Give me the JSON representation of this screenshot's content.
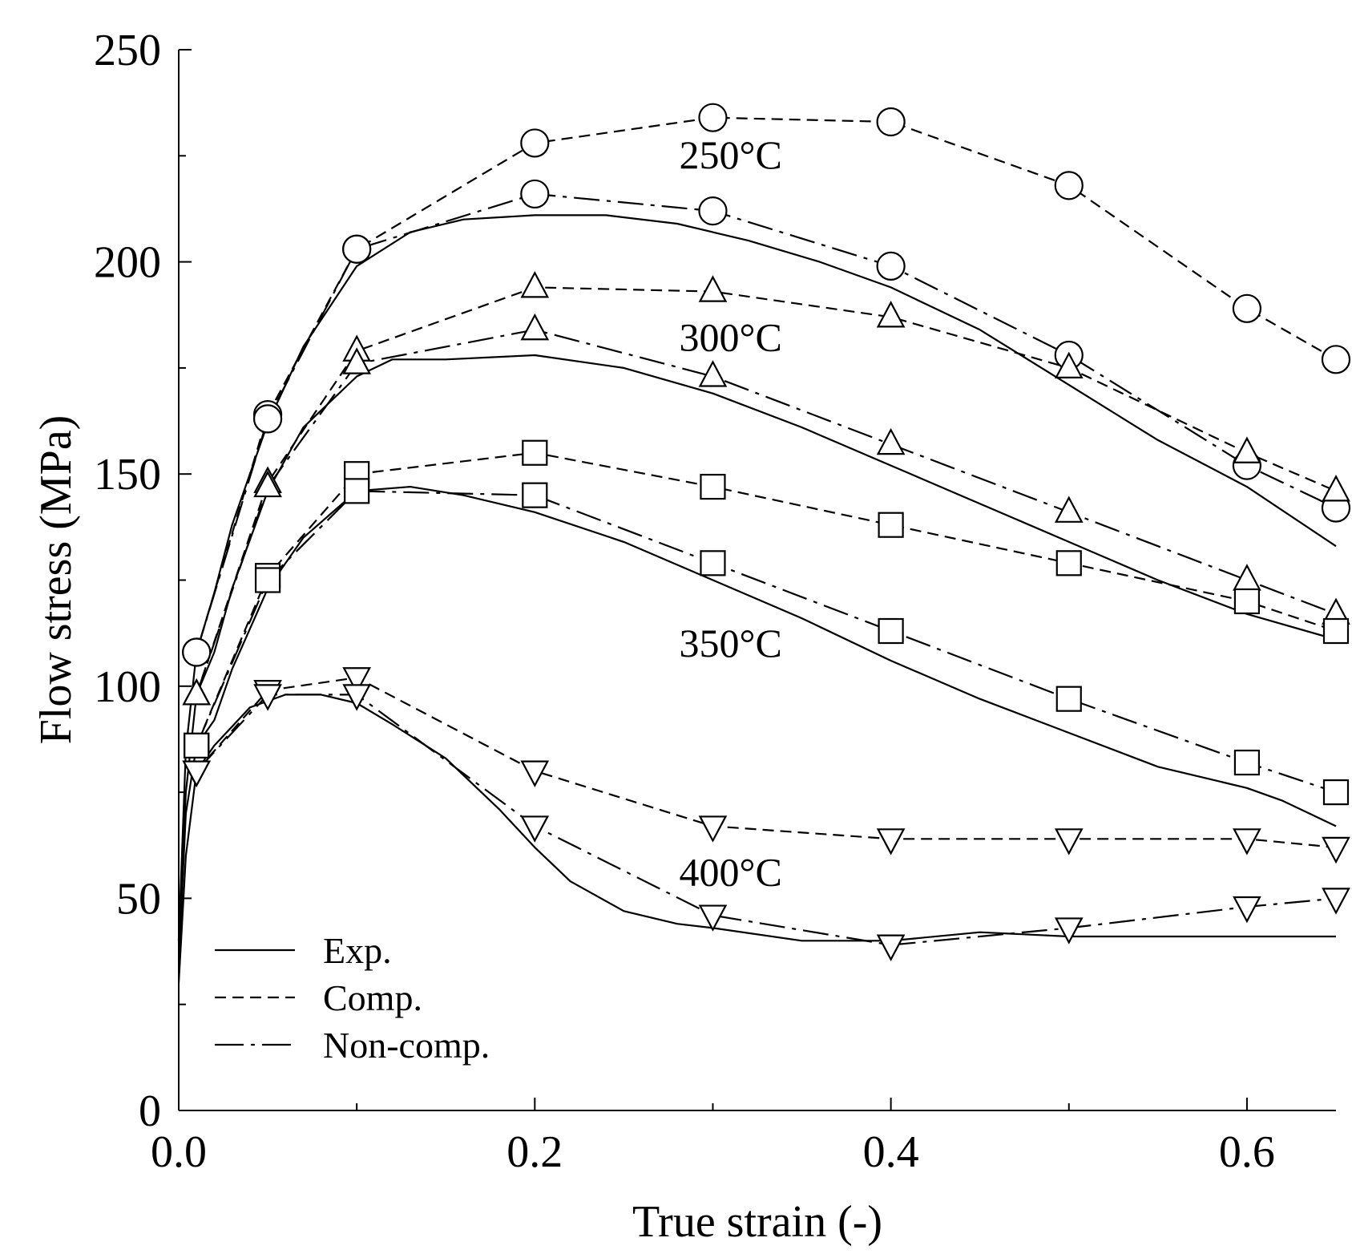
{
  "chart_data": {
    "type": "line",
    "title": "",
    "xlabel": "True strain (-)",
    "ylabel": "Flow stress (MPa)",
    "xlim": [
      0.0,
      0.65
    ],
    "ylim": [
      0,
      250
    ],
    "grid": false,
    "x_ticks": [
      {
        "value": 0.0,
        "label": "0.0"
      },
      {
        "value": 0.2,
        "label": "0.2"
      },
      {
        "value": 0.4,
        "label": "0.4"
      },
      {
        "value": 0.6,
        "label": "0.6"
      }
    ],
    "y_ticks": [
      {
        "value": 0,
        "label": "0"
      },
      {
        "value": 50,
        "label": "50"
      },
      {
        "value": 100,
        "label": "100"
      },
      {
        "value": 150,
        "label": "150"
      },
      {
        "value": 200,
        "label": "200"
      },
      {
        "value": 250,
        "label": "250"
      }
    ],
    "legend": {
      "position": "bottom-left",
      "entries": [
        {
          "style": "solid",
          "label": "Exp."
        },
        {
          "style": "dashed",
          "label": "Comp."
        },
        {
          "style": "dashdot",
          "label": "Non-comp."
        }
      ]
    },
    "annotations": [
      {
        "text": "250°C",
        "x": 0.31,
        "y": 222
      },
      {
        "text": "300°C",
        "x": 0.31,
        "y": 179
      },
      {
        "text": "350°C",
        "x": 0.31,
        "y": 107
      },
      {
        "text": "400°C",
        "x": 0.31,
        "y": 53
      }
    ],
    "series": [
      {
        "name": "250°C Exp.",
        "temperature": "250°C",
        "style": "solid",
        "marker": "none",
        "x": [
          0.0,
          0.004,
          0.01,
          0.02,
          0.03,
          0.05,
          0.07,
          0.1,
          0.13,
          0.16,
          0.2,
          0.24,
          0.28,
          0.32,
          0.36,
          0.4,
          0.45,
          0.5,
          0.55,
          0.6,
          0.65
        ],
        "y": [
          40,
          85,
          108,
          122,
          138,
          162,
          180,
          199,
          207,
          210,
          211,
          211,
          209,
          205,
          200,
          194,
          184,
          171,
          158,
          147,
          133
        ]
      },
      {
        "name": "250°C Comp.",
        "temperature": "250°C",
        "style": "dashed",
        "marker": "circle",
        "x": [
          0.01,
          0.05,
          0.1,
          0.2,
          0.3,
          0.4,
          0.5,
          0.6,
          0.65
        ],
        "y": [
          108,
          164,
          203,
          228,
          234,
          233,
          218,
          189,
          177
        ]
      },
      {
        "name": "250°C Non-comp.",
        "temperature": "250°C",
        "style": "dashdot",
        "marker": "circle",
        "x": [
          0.01,
          0.05,
          0.1,
          0.2,
          0.3,
          0.4,
          0.5,
          0.6,
          0.65
        ],
        "y": [
          108,
          163,
          203,
          216,
          212,
          199,
          178,
          152,
          142
        ]
      },
      {
        "name": "300°C Exp.",
        "temperature": "300°C",
        "style": "solid",
        "marker": "none",
        "x": [
          0.0,
          0.004,
          0.01,
          0.02,
          0.03,
          0.05,
          0.07,
          0.1,
          0.12,
          0.15,
          0.2,
          0.25,
          0.3,
          0.35,
          0.4,
          0.45,
          0.5,
          0.55,
          0.6,
          0.65
        ],
        "y": [
          40,
          75,
          98,
          108,
          123,
          146,
          161,
          173,
          177,
          177,
          178,
          175,
          169,
          161,
          152,
          143,
          134,
          125,
          117,
          111
        ]
      },
      {
        "name": "300°C Comp.",
        "temperature": "300°C",
        "style": "dashed",
        "marker": "triangle-up",
        "x": [
          0.01,
          0.05,
          0.1,
          0.2,
          0.3,
          0.4,
          0.5,
          0.6,
          0.65
        ],
        "y": [
          98,
          148,
          179,
          194,
          193,
          187,
          175,
          155,
          146
        ]
      },
      {
        "name": "300°C Non-comp.",
        "temperature": "300°C",
        "style": "dashdot",
        "marker": "triangle-up",
        "x": [
          0.01,
          0.05,
          0.1,
          0.2,
          0.3,
          0.4,
          0.5,
          0.6,
          0.65
        ],
        "y": [
          98,
          147,
          176,
          184,
          173,
          157,
          141,
          125,
          117
        ]
      },
      {
        "name": "350°C Exp.",
        "temperature": "350°C",
        "style": "solid",
        "marker": "none",
        "x": [
          0.0,
          0.004,
          0.01,
          0.02,
          0.03,
          0.05,
          0.07,
          0.1,
          0.13,
          0.16,
          0.2,
          0.25,
          0.3,
          0.35,
          0.4,
          0.45,
          0.5,
          0.55,
          0.6,
          0.62,
          0.65
        ],
        "y": [
          35,
          70,
          86,
          92,
          104,
          123,
          135,
          146,
          147,
          145,
          141,
          134,
          125,
          116,
          106,
          97,
          89,
          81,
          76,
          73,
          67
        ]
      },
      {
        "name": "350°C Comp.",
        "temperature": "350°C",
        "style": "dashed",
        "marker": "square",
        "x": [
          0.01,
          0.05,
          0.1,
          0.2,
          0.3,
          0.4,
          0.5,
          0.6,
          0.65
        ],
        "y": [
          86,
          126,
          150,
          155,
          147,
          138,
          129,
          120,
          113
        ]
      },
      {
        "name": "350°C Non-comp.",
        "temperature": "350°C",
        "style": "dashdot",
        "marker": "square",
        "x": [
          0.01,
          0.05,
          0.1,
          0.2,
          0.3,
          0.4,
          0.5,
          0.6,
          0.65
        ],
        "y": [
          86,
          125,
          146,
          145,
          129,
          113,
          97,
          82,
          75
        ]
      },
      {
        "name": "400°C Exp.",
        "temperature": "400°C",
        "style": "solid",
        "marker": "none",
        "x": [
          0.0,
          0.004,
          0.01,
          0.02,
          0.04,
          0.06,
          0.08,
          0.1,
          0.12,
          0.15,
          0.18,
          0.2,
          0.22,
          0.25,
          0.28,
          0.3,
          0.35,
          0.4,
          0.45,
          0.5,
          0.55,
          0.6,
          0.65
        ],
        "y": [
          30,
          60,
          80,
          86,
          95,
          98,
          98,
          96,
          91,
          83,
          71,
          62,
          54,
          47,
          44,
          43,
          40,
          40,
          42,
          41,
          41,
          41,
          41
        ]
      },
      {
        "name": "400°C Comp.",
        "temperature": "400°C",
        "style": "dashed",
        "marker": "triangle-down",
        "x": [
          0.01,
          0.05,
          0.1,
          0.2,
          0.3,
          0.4,
          0.5,
          0.6,
          0.65
        ],
        "y": [
          80,
          99,
          102,
          80,
          67,
          64,
          64,
          64,
          62
        ]
      },
      {
        "name": "400°C Non-comp.",
        "temperature": "400°C",
        "style": "dashdot",
        "marker": "triangle-down",
        "x": [
          0.01,
          0.05,
          0.1,
          0.2,
          0.3,
          0.4,
          0.5,
          0.6,
          0.65
        ],
        "y": [
          80,
          98,
          98,
          67,
          46,
          39,
          43,
          48,
          50
        ]
      }
    ]
  }
}
